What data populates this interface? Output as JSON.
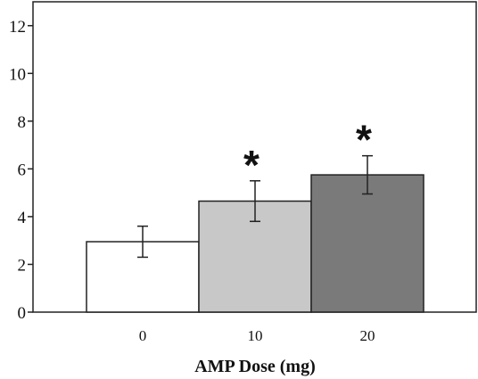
{
  "chart_data": {
    "type": "bar",
    "title": "",
    "xlabel": "AMP Dose (mg)",
    "ylabel": "",
    "ylim": [
      0,
      13
    ],
    "yticks": [
      0,
      2,
      4,
      6,
      8,
      10,
      12
    ],
    "categories": [
      "0",
      "10",
      "20"
    ],
    "values": [
      2.95,
      4.65,
      5.75
    ],
    "error": [
      0.65,
      0.85,
      0.8
    ],
    "significance": [
      "",
      "*",
      "*"
    ],
    "bar_colors": [
      "#ffffff",
      "#c8c8c8",
      "#7a7a7a"
    ],
    "grid": false
  }
}
